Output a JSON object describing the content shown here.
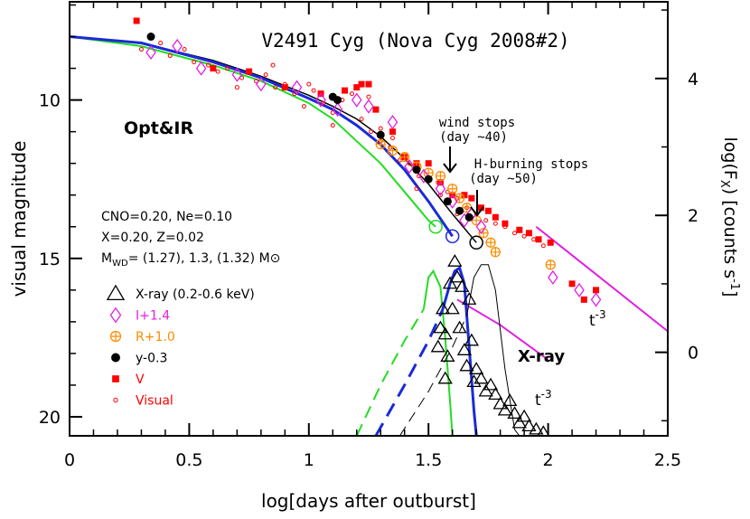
{
  "chart_data": {
    "type": "scatter",
    "title": "V2491 Cyg (Nova Cyg 2008#2)",
    "xlabel": "log[days after outburst]",
    "ylabel_left": "visual magnitude",
    "ylabel_right_parts": [
      "log(F",
      "X",
      ") [counts s",
      "-1",
      "]"
    ],
    "xlim": [
      0,
      2.5
    ],
    "ylim_left": [
      20.6,
      6.9
    ],
    "ylim_right": [
      -1.22,
      5.12
    ],
    "x_ticks": [
      "0",
      "0.5",
      "1",
      "1.5",
      "2",
      "2.5"
    ],
    "y_left_ticks": [
      "10",
      "15",
      "20"
    ],
    "y_right_ticks": [
      "0",
      "2",
      "4"
    ],
    "labels": {
      "optir": "Opt&IR",
      "xray_label": "X-ray",
      "t3_upper": "t",
      "t3_lower": "t",
      "t3_exp": "-3",
      "wind_line1": "wind stops",
      "wind_line2": "(day ~40)",
      "hburn_line1": "H-burning stops",
      "hburn_line2": "(day ~50)",
      "params_line1": "CNO=0.20, Ne=0.10",
      "params_line2": "X=0.20, Z=0.02",
      "params_line3_pre": "M",
      "params_line3_sub": "WD",
      "params_line3_mid": "= (1.27), 1.3, (1.32) M",
      "params_line3_sun": "⊙"
    },
    "legend": {
      "placement": "left",
      "entries": [
        {
          "marker": "triangle",
          "label": "X-ray (0.2-0.6 keV)",
          "color": "#000000"
        },
        {
          "marker": "diamond",
          "label": "I+1.4",
          "color": "#e020e0"
        },
        {
          "marker": "circle-plus",
          "label": "R+1.0",
          "color": "#ff8c00"
        },
        {
          "marker": "dot",
          "label": "y-0.3",
          "color": "#000000"
        },
        {
          "marker": "square",
          "label": "V",
          "color": "#ff0000"
        },
        {
          "marker": "small-circle",
          "label": "Visual",
          "color": "#ff0000"
        }
      ]
    },
    "colors": {
      "green": "#22dd22",
      "blue": "#1b2ad8",
      "magenta": "#e020e0",
      "orange": "#ff8c00",
      "red": "#ff0000",
      "black": "#000000"
    },
    "models": {
      "green_opt": [
        [
          0,
          8.0
        ],
        [
          0.3,
          8.3
        ],
        [
          0.6,
          8.9
        ],
        [
          0.8,
          9.4
        ],
        [
          1.0,
          10.1
        ],
        [
          1.1,
          10.6
        ],
        [
          1.2,
          11.3
        ],
        [
          1.3,
          12.0
        ],
        [
          1.4,
          12.9
        ],
        [
          1.5,
          13.8
        ],
        [
          1.53,
          14.0
        ]
      ],
      "blue_opt": [
        [
          0,
          8.0
        ],
        [
          0.3,
          8.2
        ],
        [
          0.6,
          8.8
        ],
        [
          0.8,
          9.3
        ],
        [
          1.0,
          9.95
        ],
        [
          1.1,
          10.3
        ],
        [
          1.2,
          10.8
        ],
        [
          1.3,
          11.4
        ],
        [
          1.4,
          12.2
        ],
        [
          1.5,
          13.2
        ],
        [
          1.6,
          14.3
        ]
      ],
      "black_opt": [
        [
          0,
          8.0
        ],
        [
          0.3,
          8.2
        ],
        [
          0.6,
          8.75
        ],
        [
          0.8,
          9.25
        ],
        [
          1.0,
          9.85
        ],
        [
          1.1,
          10.2
        ],
        [
          1.2,
          10.6
        ],
        [
          1.3,
          11.15
        ],
        [
          1.4,
          11.85
        ],
        [
          1.5,
          12.65
        ],
        [
          1.6,
          13.6
        ],
        [
          1.7,
          14.5
        ]
      ],
      "magenta_line": [
        [
          1.62,
          16.3
        ],
        [
          1.8,
          17.1
        ],
        [
          2.0,
          18.2
        ]
      ],
      "magenta_line_upper": [
        [
          1.95,
          14.0
        ],
        [
          2.1,
          14.9
        ],
        [
          2.5,
          17.3
        ]
      ],
      "green_x_dash": [
        [
          1.2,
          20.6
        ],
        [
          1.3,
          19.0
        ],
        [
          1.4,
          17.6
        ],
        [
          1.48,
          16.6
        ]
      ],
      "green_x_solid": [
        [
          1.48,
          16.6
        ],
        [
          1.5,
          15.6
        ],
        [
          1.52,
          15.4
        ],
        [
          1.55,
          15.9
        ],
        [
          1.57,
          17.5
        ],
        [
          1.59,
          19.5
        ],
        [
          1.6,
          20.6
        ]
      ],
      "blue_x_dash": [
        [
          1.28,
          20.6
        ],
        [
          1.4,
          19.0
        ],
        [
          1.5,
          17.6
        ],
        [
          1.56,
          16.6
        ]
      ],
      "blue_x_solid": [
        [
          1.56,
          16.6
        ],
        [
          1.59,
          15.8
        ],
        [
          1.61,
          15.4
        ],
        [
          1.63,
          15.3
        ],
        [
          1.65,
          15.8
        ],
        [
          1.67,
          17.8
        ],
        [
          1.69,
          19.8
        ],
        [
          1.7,
          20.6
        ]
      ],
      "black_x_dash": [
        [
          1.38,
          20.6
        ],
        [
          1.5,
          19.2
        ],
        [
          1.6,
          17.8
        ],
        [
          1.66,
          16.8
        ]
      ],
      "black_x_solid": [
        [
          1.66,
          16.8
        ],
        [
          1.69,
          15.6
        ],
        [
          1.72,
          15.2
        ],
        [
          1.75,
          15.2
        ],
        [
          1.78,
          16.0
        ],
        [
          1.82,
          18.5
        ],
        [
          1.86,
          20.4
        ],
        [
          1.88,
          20.6
        ]
      ],
      "open_circles": [
        {
          "x": 1.53,
          "y": 14.0,
          "color": "#22dd22"
        },
        {
          "x": 1.6,
          "y": 14.3,
          "color": "#1b2ad8"
        },
        {
          "x": 1.7,
          "y": 14.5,
          "color": "#000000"
        }
      ]
    },
    "series": [
      {
        "name": "X-ray (0.2-0.6 keV)",
        "marker": "triangle",
        "x": [
          1.59,
          1.6,
          1.61,
          1.62,
          1.63,
          1.64,
          1.65,
          1.66,
          1.67,
          1.68,
          1.69,
          1.7,
          1.72,
          1.74,
          1.76,
          1.78,
          1.8,
          1.82,
          1.84,
          1.86,
          1.88,
          1.9,
          1.92,
          1.95,
          1.98,
          1.56,
          1.55,
          1.54,
          1.57,
          1.58,
          1.57
        ],
        "y": [
          15.8,
          16.6,
          15.1,
          15.6,
          17.2,
          15.9,
          17.9,
          18.4,
          16.3,
          17.6,
          18.9,
          18.5,
          18.8,
          19.2,
          19.0,
          19.3,
          19.6,
          19.8,
          19.5,
          19.9,
          20.2,
          20.0,
          20.3,
          20.4,
          20.5,
          16.6,
          17.2,
          17.8,
          17.4,
          18.1,
          18.8
        ]
      },
      {
        "name": "I+1.4",
        "marker": "diamond",
        "x": [
          0.34,
          0.45,
          0.55,
          0.7,
          0.8,
          0.95,
          1.05,
          1.12,
          1.2,
          1.25,
          1.35,
          1.42,
          1.48,
          1.55,
          1.6,
          1.65,
          1.68,
          1.72,
          2.02,
          2.13,
          2.2
        ],
        "y": [
          8.5,
          8.3,
          9.0,
          9.2,
          9.5,
          9.6,
          10.0,
          10.3,
          10.0,
          10.2,
          10.7,
          12.1,
          12.4,
          12.8,
          13.2,
          13.8,
          13.6,
          14.0,
          15.6,
          16.0,
          16.3
        ]
      },
      {
        "name": "R+1.0",
        "marker": "circle-plus",
        "x": [
          1.3,
          1.35,
          1.4,
          1.45,
          1.5,
          1.55,
          1.6,
          1.63,
          1.66,
          1.7,
          1.73,
          1.76,
          1.78,
          2.01
        ],
        "y": [
          11.4,
          11.6,
          11.8,
          12.1,
          12.3,
          12.4,
          12.8,
          13.1,
          13.4,
          13.8,
          14.2,
          14.5,
          14.8,
          15.2
        ]
      },
      {
        "name": "y-0.3",
        "marker": "dot",
        "x": [
          0.34,
          1.1,
          1.12,
          1.3,
          1.45,
          1.5,
          1.58,
          1.63,
          1.67
        ],
        "y": [
          8.0,
          9.9,
          10.0,
          11.1,
          12.2,
          12.5,
          13.2,
          13.5,
          13.7
        ]
      },
      {
        "name": "V",
        "marker": "square",
        "x": [
          0.28,
          0.6,
          0.75,
          0.9,
          1.05,
          1.15,
          1.2,
          1.22,
          1.25,
          1.28,
          1.35,
          1.4,
          1.45,
          1.5,
          1.55,
          1.6,
          1.65,
          1.68,
          1.72,
          1.75,
          1.78,
          1.82,
          1.88,
          1.92,
          1.96,
          2.01,
          2.1,
          2.15,
          2.2
        ],
        "y": [
          7.5,
          9.0,
          9.1,
          9.6,
          9.8,
          9.7,
          9.6,
          9.5,
          9.5,
          10.3,
          11.0,
          11.8,
          12.0,
          12.0,
          12.6,
          13.0,
          13.0,
          13.1,
          13.4,
          13.5,
          13.7,
          13.9,
          14.1,
          14.2,
          14.4,
          14.5,
          15.8,
          16.3,
          16.0
        ]
      },
      {
        "name": "Visual",
        "marker": "small-circle",
        "x": [
          0.3,
          0.38,
          0.42,
          0.48,
          0.52,
          0.58,
          0.62,
          0.66,
          0.72,
          0.78,
          0.82,
          0.86,
          0.9,
          0.94,
          0.98,
          1.02,
          1.06,
          1.1,
          1.14,
          1.18,
          1.22,
          1.26,
          1.3,
          1.34,
          1.38,
          1.42,
          1.46,
          1.5,
          1.54,
          1.58,
          1.62,
          1.66,
          1.7,
          1.74,
          1.78,
          1.82,
          1.86,
          1.9,
          1.94,
          1.98,
          1.3,
          1.25,
          1.1,
          1.0,
          0.85,
          0.7,
          1.35,
          1.45,
          1.55,
          1.62
        ],
        "y": [
          8.4,
          8.2,
          8.6,
          8.4,
          8.8,
          8.9,
          9.1,
          9.0,
          9.3,
          9.4,
          9.2,
          9.6,
          9.5,
          9.8,
          10.2,
          9.7,
          10.1,
          10.4,
          10.0,
          9.8,
          10.6,
          11.0,
          11.3,
          11.5,
          11.9,
          12.0,
          12.4,
          12.5,
          12.6,
          12.9,
          13.1,
          13.4,
          13.6,
          13.8,
          13.9,
          14.0,
          14.2,
          14.3,
          14.4,
          14.6,
          10.9,
          9.9,
          10.8,
          9.5,
          8.9,
          9.6,
          11.2,
          12.8,
          13.0,
          13.6
        ]
      }
    ]
  }
}
